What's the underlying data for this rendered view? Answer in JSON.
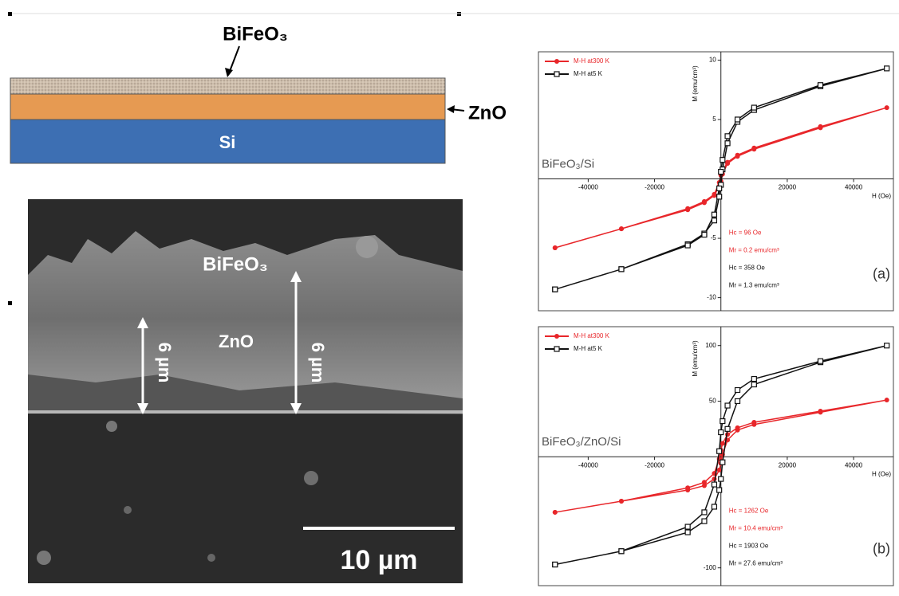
{
  "schematic": {
    "top_layer": "BiFeO₃",
    "middle_layer": "ZnO",
    "substrate": "Si"
  },
  "sem": {
    "top_label": "BiFeO₃",
    "middle_label": "ZnO",
    "thickness_labels": [
      "6 µm",
      "6 µm"
    ],
    "scale_bar": "10 µm"
  },
  "chart_data": [
    {
      "type": "line",
      "sample": "BiFeO₃/Si",
      "panel_label": "(a)",
      "x_label": "H (Oe)",
      "y_label": "M (emu/cm³)",
      "x": [
        -50000,
        -30000,
        -10000,
        -5000,
        -2000,
        -500,
        0,
        500,
        2000,
        5000,
        10000,
        30000,
        50000,
        30000,
        10000,
        5000,
        2000,
        500,
        0,
        -500,
        -2000,
        -5000,
        -10000,
        -30000,
        -50000
      ],
      "xlim": [
        -55000,
        52000
      ],
      "xticks": [
        -40000,
        -20000,
        20000,
        40000
      ],
      "ylim": [
        -11.1,
        10.7
      ],
      "yticks": [
        -10,
        -5,
        5,
        10
      ],
      "series": [
        {
          "name": "M-H at300 K",
          "color": "#e8262a",
          "marker": "circle",
          "values": [
            -5.8,
            -4.2,
            -2.6,
            -2.0,
            -1.4,
            -0.6,
            -0.2,
            0.4,
            1.3,
            1.9,
            2.5,
            4.3,
            6.0,
            4.4,
            2.6,
            2.0,
            1.4,
            0.7,
            0.3,
            -0.3,
            -1.3,
            -1.9,
            -2.5,
            -4.2,
            -5.8
          ]
        },
        {
          "name": "M-H at5 K",
          "color": "#111111",
          "marker": "square",
          "values": [
            -9.3,
            -7.6,
            -5.5,
            -4.6,
            -3.5,
            -1.5,
            -0.5,
            0.8,
            3.0,
            4.8,
            5.8,
            7.8,
            9.3,
            7.9,
            6.0,
            5.0,
            3.6,
            1.6,
            0.6,
            -0.8,
            -3.0,
            -4.7,
            -5.6,
            -7.6,
            -9.3
          ]
        }
      ],
      "annotations": [
        {
          "text": "Hc = 96 Oe",
          "color": "#e8262a"
        },
        {
          "text": "Mr = 0.2 emu/cm³",
          "color": "#e8262a"
        },
        {
          "text": "Hc = 358 Oe",
          "color": "#111111"
        },
        {
          "text": "Mr = 1.3 emu/cm³",
          "color": "#111111"
        }
      ]
    },
    {
      "type": "line",
      "sample": "BiFeO₃/ZnO/Si",
      "panel_label": "(b)",
      "x_label": "H (Oe)",
      "y_label": "M (emu/cm³)",
      "x": [
        -50000,
        -30000,
        -10000,
        -5000,
        -2000,
        -500,
        0,
        500,
        2000,
        5000,
        10000,
        30000,
        50000,
        30000,
        10000,
        5000,
        2000,
        500,
        0,
        -500,
        -2000,
        -5000,
        -10000,
        -30000,
        -50000
      ],
      "xlim": [
        -55000,
        52000
      ],
      "xticks": [
        -40000,
        -20000,
        20000,
        40000
      ],
      "ylim": [
        -116,
        117
      ],
      "yticks": [
        -100,
        50,
        100
      ],
      "series": [
        {
          "name": "M-H at300 K",
          "color": "#e8262a",
          "marker": "circle",
          "values": [
            -50,
            -40,
            -30,
            -26,
            -20,
            -12,
            -6,
            2,
            15,
            24,
            29,
            40,
            51,
            41,
            31,
            26,
            20,
            12,
            6,
            -2,
            -15,
            -23,
            -28,
            -40,
            -50
          ]
        },
        {
          "name": "M-H at5 K",
          "color": "#111111",
          "marker": "square",
          "values": [
            -97,
            -85,
            -68,
            -58,
            -45,
            -30,
            -20,
            -5,
            25,
            50,
            65,
            85,
            100,
            86,
            70,
            60,
            46,
            32,
            22,
            5,
            -25,
            -50,
            -63,
            -85,
            -97
          ]
        }
      ],
      "annotations": [
        {
          "text": "Hc = 1262 Oe",
          "color": "#e8262a"
        },
        {
          "text": "Mr = 10.4 emu/cm³",
          "color": "#e8262a"
        },
        {
          "text": "Hc = 1903 Oe",
          "color": "#111111"
        },
        {
          "text": "Mr = 27.6 emu/cm³",
          "color": "#111111"
        }
      ]
    }
  ]
}
